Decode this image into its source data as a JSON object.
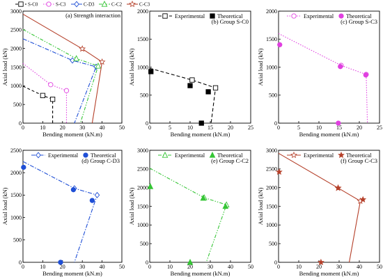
{
  "figure": {
    "panels": [
      {
        "id": "a",
        "title": "(a) Strength interaction",
        "xlabel": "Bending moment (kN.m)",
        "ylabel": "Axial load (kN)",
        "xlim": [
          0,
          50
        ],
        "ylim": [
          0,
          3000
        ],
        "xticks": [
          0,
          10,
          20,
          30,
          40,
          50
        ],
        "yticks": [
          0,
          500,
          1000,
          1500,
          2000,
          2500,
          3000
        ],
        "legend": [
          "S-C0",
          "S-C3",
          "C-D3",
          "C-C2",
          "C-C3"
        ]
      },
      {
        "id": "b",
        "title": "(b) Group S-C0",
        "xlabel": "Bending moment (kN.m)",
        "ylabel": "Axial load (kN)",
        "xlim": [
          0,
          25
        ],
        "ylim": [
          0,
          2000
        ],
        "xticks": [
          0,
          5,
          10,
          15,
          20,
          25
        ],
        "yticks": [
          0,
          500,
          1000,
          1500,
          2000
        ],
        "legend": [
          "Experimental",
          "Theoretical"
        ]
      },
      {
        "id": "c",
        "title": "(c) Group S-C3",
        "xlabel": "Bending moment (kN.m)",
        "ylabel": "Axial load (kN)",
        "xlim": [
          0,
          25
        ],
        "ylim": [
          0,
          2000
        ],
        "xticks": [
          0,
          5,
          10,
          15,
          20,
          25
        ],
        "yticks": [
          0,
          500,
          1000,
          1500,
          2000
        ],
        "legend": [
          "Experimental",
          "Theoretical"
        ]
      },
      {
        "id": "d",
        "title": "(d) Group C-D3",
        "xlabel": "Bending moment (kN.m)",
        "ylabel": "Axial load (kN)",
        "xlim": [
          0,
          50
        ],
        "ylim": [
          0,
          2500
        ],
        "xticks": [
          0,
          10,
          20,
          30,
          40,
          50
        ],
        "yticks": [
          0,
          500,
          1000,
          1500,
          2000,
          2500
        ],
        "legend": [
          "Experimental",
          "Theoretical"
        ]
      },
      {
        "id": "e",
        "title": "(e) Group C-C2",
        "xlabel": "Bending moment (kN.m)",
        "ylabel": "Axial load (kN)",
        "xlim": [
          0,
          50
        ],
        "ylim": [
          0,
          3000
        ],
        "xticks": [
          0,
          10,
          20,
          30,
          40,
          50
        ],
        "yticks": [
          0,
          500,
          1000,
          1500,
          2000,
          2500,
          3000
        ],
        "legend": [
          "Experimental",
          "Theoretical"
        ]
      },
      {
        "id": "f",
        "title": "(f) Group C-C3",
        "xlabel": "Bending moment (kN.m)",
        "ylabel": "Axial load (kN)",
        "xlim": [
          0,
          50
        ],
        "ylim": [
          0,
          3000
        ],
        "xticks": [
          0,
          10,
          20,
          30,
          40,
          50
        ],
        "yticks": [
          0,
          500,
          1000,
          1500,
          2000,
          2500,
          3000
        ],
        "legend": [
          "Experimental",
          "Theoretical"
        ]
      }
    ]
  },
  "chart_data": [
    {
      "type": "line",
      "title": "(a) Strength interaction",
      "xlabel": "Bending moment (kN.m)",
      "ylabel": "Axial load (kN)",
      "xlim": [
        0,
        50
      ],
      "ylim": [
        0,
        3000
      ],
      "legend_position": "top",
      "series": [
        {
          "name": "S-C0",
          "color": "#000000",
          "dash": "4,3",
          "marker": "square",
          "x": [
            0,
            10,
            15,
            15
          ],
          "y": [
            990,
            740,
            640,
            0
          ]
        },
        {
          "name": "S-C3",
          "color": "#e040e0",
          "dash": "1.5,2",
          "marker": "circle",
          "x": [
            0,
            14,
            22,
            22
          ],
          "y": [
            1600,
            1030,
            870,
            0
          ]
        },
        {
          "name": "C-D3",
          "color": "#1f4fd6",
          "dash": "6,2,1.5,2",
          "marker": "diamond",
          "x": [
            0,
            25,
            37,
            26
          ],
          "y": [
            2260,
            1680,
            1510,
            0
          ]
        },
        {
          "name": "C-C2",
          "color": "#35c535",
          "dash": "5,2,1.5,2,1.5,2",
          "marker": "triangle",
          "x": [
            0,
            27,
            38,
            29
          ],
          "y": [
            2510,
            1730,
            1530,
            0
          ]
        },
        {
          "name": "C-C3",
          "color": "#b5402a",
          "dash": "",
          "marker": "star",
          "x": [
            0,
            30,
            40,
            35
          ],
          "y": [
            2920,
            1990,
            1640,
            0
          ]
        }
      ]
    },
    {
      "type": "line",
      "title": "(b) Group S-C0",
      "xlabel": "Bending moment (kN.m)",
      "ylabel": "Axial load (kN)",
      "xlim": [
        0,
        25
      ],
      "ylim": [
        0,
        2000
      ],
      "legend_position": "top",
      "series": [
        {
          "name": "Experimental",
          "color": "#000000",
          "dash": "5,3",
          "marker": "open-square",
          "x": [
            0,
            10.5,
            16.3,
            15.2
          ],
          "y": [
            980,
            770,
            630,
            0
          ]
        },
        {
          "name": "Theoretical",
          "color": "#000000",
          "marker": "filled-square",
          "scatter": true,
          "x": [
            0.3,
            10,
            14.5,
            12.8
          ],
          "y": [
            920,
            670,
            560,
            0
          ]
        }
      ]
    },
    {
      "type": "line",
      "title": "(c) Group S-C3",
      "xlabel": "Bending moment (kN.m)",
      "ylabel": "Axial load (kN)",
      "xlim": [
        0,
        25
      ],
      "ylim": [
        0,
        2000
      ],
      "legend_position": "top",
      "series": [
        {
          "name": "Experimental",
          "color": "#e040e0",
          "dash": "1.5,2",
          "marker": "open-circle",
          "x": [
            0,
            15.5,
            21.7,
            22
          ],
          "y": [
            1600,
            1030,
            870,
            0
          ]
        },
        {
          "name": "Theoretical",
          "color": "#e040e0",
          "marker": "filled-circle",
          "scatter": true,
          "x": [
            0.3,
            15.3,
            21.6,
            14.8
          ],
          "y": [
            1400,
            1010,
            860,
            0
          ]
        }
      ]
    },
    {
      "type": "line",
      "title": "(d) Group C-D3",
      "xlabel": "Bending moment (kN.m)",
      "ylabel": "Axial load (kN)",
      "xlim": [
        0,
        50
      ],
      "ylim": [
        0,
        2500
      ],
      "legend_position": "top",
      "series": [
        {
          "name": "Experimental",
          "color": "#1f4fd6",
          "dash": "6,2,1.5,2",
          "marker": "open-diamond",
          "x": [
            0,
            26,
            37.5,
            26
          ],
          "y": [
            2250,
            1650,
            1500,
            0
          ]
        },
        {
          "name": "Theoretical",
          "color": "#1f4fd6",
          "marker": "filled-circle",
          "scatter": true,
          "x": [
            0.3,
            25.5,
            35,
            19
          ],
          "y": [
            2120,
            1620,
            1380,
            0
          ]
        }
      ]
    },
    {
      "type": "line",
      "title": "(e) Group C-C2",
      "xlabel": "Bending moment (kN.m)",
      "ylabel": "Axial load (kN)",
      "xlim": [
        0,
        50
      ],
      "ylim": [
        0,
        3000
      ],
      "legend_position": "top",
      "series": [
        {
          "name": "Experimental",
          "color": "#35c535",
          "dash": "5,2,1.5,2,1.5,2",
          "marker": "open-triangle",
          "x": [
            0,
            27,
            38,
            28
          ],
          "y": [
            2520,
            1730,
            1540,
            0
          ]
        },
        {
          "name": "Theoretical",
          "color": "#35c535",
          "marker": "filled-triangle",
          "scatter": true,
          "x": [
            0.3,
            26.5,
            37.5,
            20
          ],
          "y": [
            2030,
            1720,
            1500,
            0
          ]
        }
      ]
    },
    {
      "type": "line",
      "title": "(f) Group C-C3",
      "xlabel": "Bending moment (kN.m)",
      "ylabel": "Axial load (kN)",
      "xlim": [
        0,
        50
      ],
      "ylim": [
        0,
        3000
      ],
      "legend_position": "top",
      "series": [
        {
          "name": "Experimental",
          "color": "#b5402a",
          "dash": "",
          "marker": "open-star",
          "x": [
            0,
            29.5,
            40.5,
            35
          ],
          "y": [
            2920,
            1990,
            1640,
            0
          ]
        },
        {
          "name": "Theoretical",
          "color": "#b5402a",
          "marker": "filled-star",
          "scatter": true,
          "x": [
            0.3,
            29.5,
            41.8,
            21
          ],
          "y": [
            2420,
            1990,
            1680,
            0
          ]
        }
      ]
    }
  ]
}
